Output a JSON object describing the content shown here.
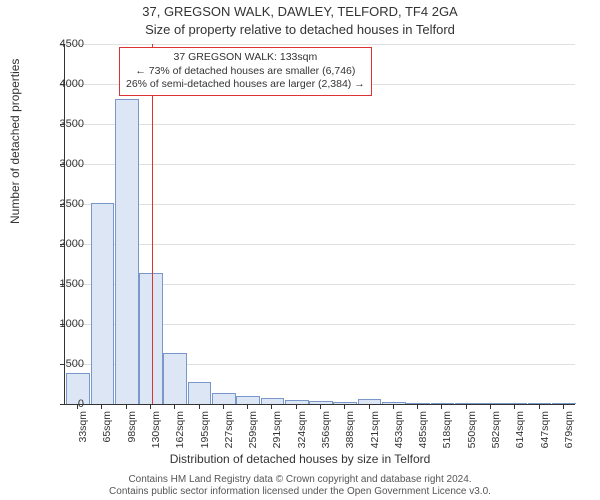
{
  "title_line1": "37, GREGSON WALK, DAWLEY, TELFORD, TF4 2GA",
  "title_line2": "Size of property relative to detached houses in Telford",
  "ylabel": "Number of detached properties",
  "xlabel": "Distribution of detached houses by size in Telford",
  "footer_line1": "Contains HM Land Registry data © Crown copyright and database right 2024.",
  "footer_line2": "Contains public sector information licensed under the Open Government Licence v3.0.",
  "chart": {
    "type": "bar",
    "ylim": [
      0,
      4500
    ],
    "ytick_step": 500,
    "yticks": [
      0,
      500,
      1000,
      1500,
      2000,
      2500,
      3000,
      3500,
      4000,
      4500
    ],
    "grid_color": "#e0e0e0",
    "axis_color": "#333333",
    "background": "#ffffff",
    "bar_fill": "#dce6f5",
    "bar_stroke": "#7a97c9",
    "bar_width_ratio": 0.9,
    "categories": [
      "33sqm",
      "65sqm",
      "98sqm",
      "130sqm",
      "162sqm",
      "195sqm",
      "227sqm",
      "259sqm",
      "291sqm",
      "324sqm",
      "356sqm",
      "388sqm",
      "421sqm",
      "453sqm",
      "485sqm",
      "518sqm",
      "550sqm",
      "582sqm",
      "614sqm",
      "647sqm",
      "679sqm"
    ],
    "values": [
      380,
      2500,
      3800,
      1630,
      620,
      260,
      130,
      90,
      60,
      40,
      25,
      15,
      50,
      10,
      5,
      5,
      5,
      0,
      0,
      0,
      0
    ],
    "tick_fontsize": 11,
    "xlabel_fontsize": 12,
    "ylabel_fontsize": 12,
    "title_fontsize": 13
  },
  "reference_line": {
    "x_value": 133,
    "color": "#dd3333"
  },
  "annotation": {
    "border_color": "#dd3333",
    "text_line1": "37 GREGSON WALK: 133sqm",
    "text_line2": "← 73% of detached houses are smaller (6,746)",
    "text_line3": "26% of semi-detached houses are larger (2,384) →"
  }
}
